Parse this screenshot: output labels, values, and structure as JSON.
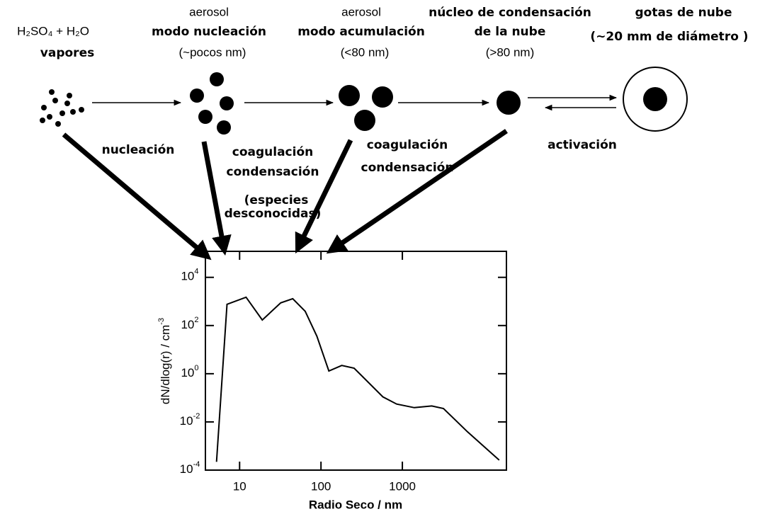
{
  "stages": [
    {
      "lines": [
        "H₂SO₄ + H₂O",
        "vapores"
      ]
    },
    {
      "lines": [
        "aerosol",
        "modo nucleación",
        "(~pocos nm)"
      ]
    },
    {
      "lines": [
        "aerosol",
        "modo acumulación",
        "(<80 nm)"
      ]
    },
    {
      "lines": [
        "núcleo de condensación",
        "de la nube",
        "(>80 nm)"
      ]
    },
    {
      "lines": [
        "gotas de nube",
        "(~20 mm de diámetro )"
      ]
    }
  ],
  "processes": [
    {
      "lines": [
        "nucleación"
      ]
    },
    {
      "lines": [
        "coagulación",
        "condensación",
        "(especies",
        "desconocidas)"
      ]
    },
    {
      "lines": [
        "coagulación",
        "condensación"
      ]
    },
    {
      "lines": [
        "activación"
      ]
    }
  ],
  "chart_data": {
    "type": "line",
    "x_label": "Radio Seco / nm",
    "y_label": "dN/dlog(r) / cm",
    "y_label_exponent": "-3",
    "xscale": "log",
    "yscale": "log",
    "color": "#000000",
    "x": [
      5.2,
      7,
      12,
      19,
      32,
      45,
      64,
      89,
      125,
      180,
      255,
      575,
      850,
      1400,
      2300,
      3200,
      6300,
      15500
    ],
    "values": [
      0.00022,
      760,
      1500,
      170,
      870,
      1300,
      390,
      36,
      1.3,
      2.2,
      1.7,
      0.11,
      0.055,
      0.039,
      0.046,
      0.036,
      0.0039,
      0.00026
    ],
    "xlim": [
      3.8,
      19000
    ],
    "ylim": [
      0.0001,
      120000
    ],
    "xticks": [
      10,
      100,
      1000
    ],
    "yticks": [
      {
        "value": 0.0001,
        "label": "10",
        "exponent": "-4"
      },
      {
        "value": 0.01,
        "label": "10",
        "exponent": "-2"
      },
      {
        "value": 1,
        "label": "10",
        "exponent": "0"
      },
      {
        "value": 100,
        "label": "10",
        "exponent": "2"
      },
      {
        "value": 10000,
        "label": "10",
        "exponent": "4"
      }
    ]
  }
}
